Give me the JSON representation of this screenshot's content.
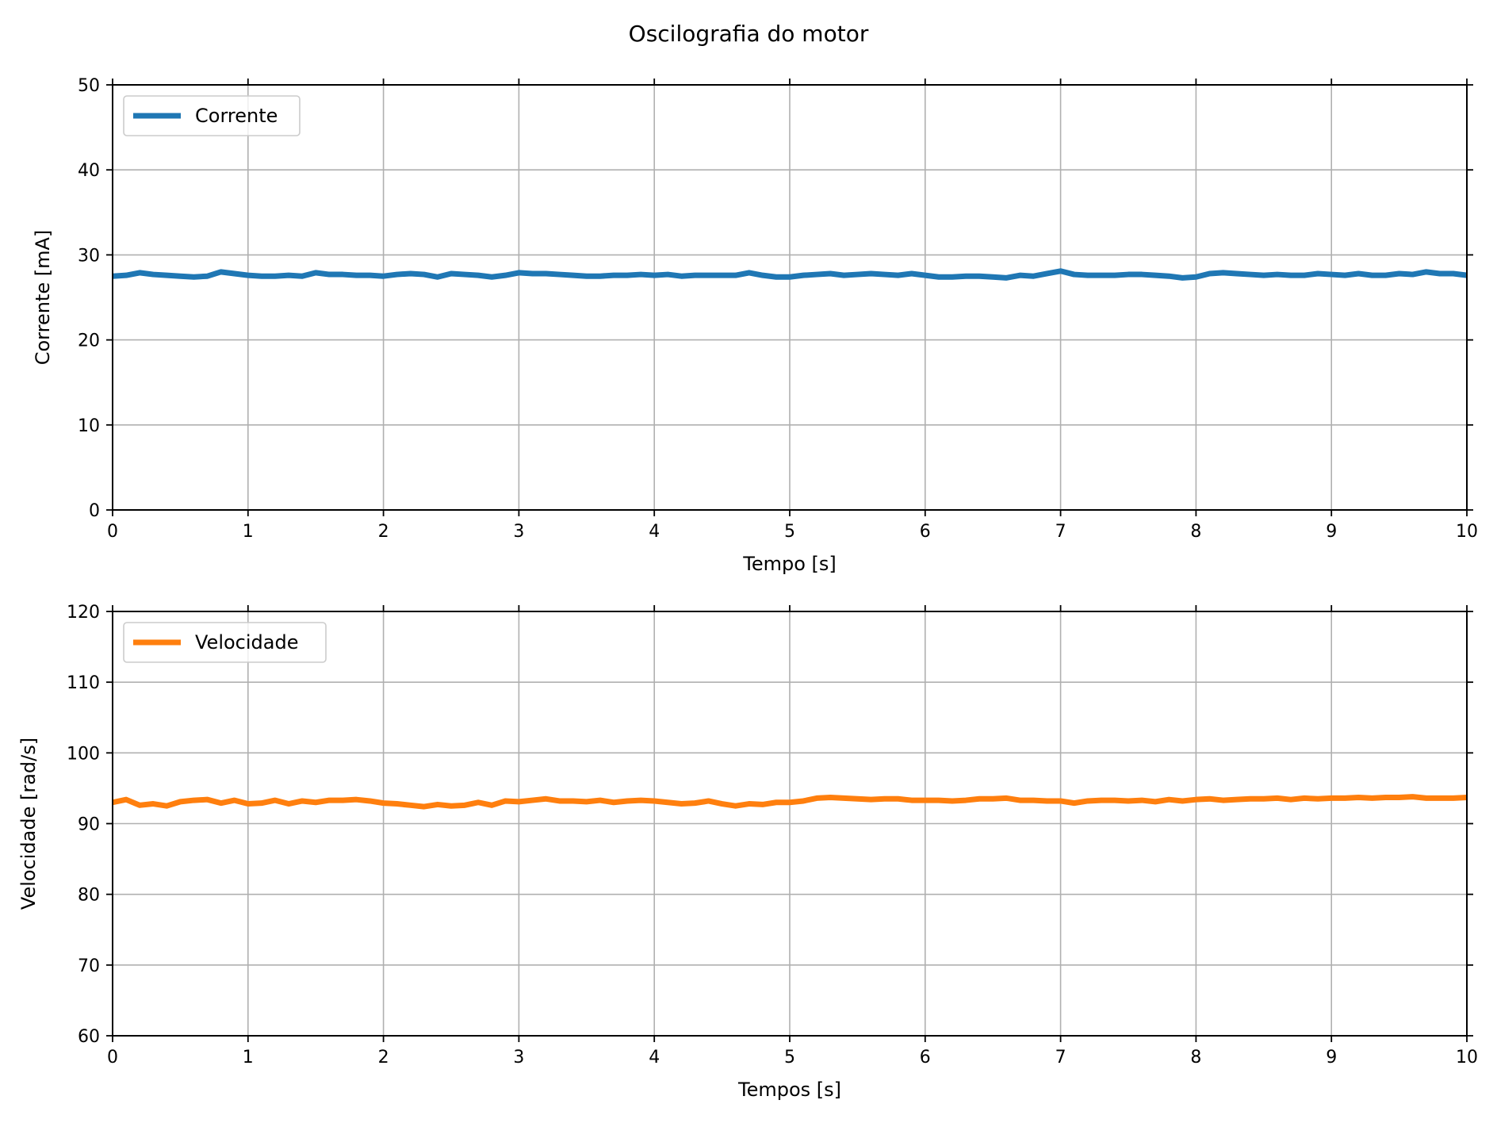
{
  "figure": {
    "title": "Oscilografia do motor"
  },
  "chart_data": [
    {
      "type": "line",
      "xlabel": "Tempo [s]",
      "ylabel": "Corrente [mA]",
      "xlim": [
        0,
        10
      ],
      "ylim": [
        0,
        50
      ],
      "xticks": [
        0,
        1,
        2,
        3,
        4,
        5,
        6,
        7,
        8,
        9,
        10
      ],
      "yticks": [
        0,
        10,
        20,
        30,
        40,
        50
      ],
      "grid": true,
      "legend_position": "top-left",
      "series": [
        {
          "name": "Corrente",
          "color": "#1f77b4",
          "x": [
            0,
            0.1,
            0.2,
            0.3,
            0.4,
            0.5,
            0.6,
            0.7,
            0.8,
            0.9,
            1.0,
            1.1,
            1.2,
            1.3,
            1.4,
            1.5,
            1.6,
            1.7,
            1.8,
            1.9,
            2.0,
            2.1,
            2.2,
            2.3,
            2.4,
            2.5,
            2.6,
            2.7,
            2.8,
            2.9,
            3.0,
            3.1,
            3.2,
            3.3,
            3.4,
            3.5,
            3.6,
            3.7,
            3.8,
            3.9,
            4.0,
            4.1,
            4.2,
            4.3,
            4.4,
            4.5,
            4.6,
            4.7,
            4.8,
            4.9,
            5.0,
            5.1,
            5.2,
            5.3,
            5.4,
            5.5,
            5.6,
            5.7,
            5.8,
            5.9,
            6.0,
            6.1,
            6.2,
            6.3,
            6.4,
            6.5,
            6.6,
            6.7,
            6.8,
            6.9,
            7.0,
            7.1,
            7.2,
            7.3,
            7.4,
            7.5,
            7.6,
            7.7,
            7.8,
            7.9,
            8.0,
            8.1,
            8.2,
            8.3,
            8.4,
            8.5,
            8.6,
            8.7,
            8.8,
            8.9,
            9.0,
            9.1,
            9.2,
            9.3,
            9.4,
            9.5,
            9.6,
            9.7,
            9.8,
            9.9,
            10.0
          ],
          "y": [
            27.5,
            27.6,
            27.9,
            27.7,
            27.6,
            27.5,
            27.4,
            27.5,
            28.0,
            27.8,
            27.6,
            27.5,
            27.5,
            27.6,
            27.5,
            27.9,
            27.7,
            27.7,
            27.6,
            27.6,
            27.5,
            27.7,
            27.8,
            27.7,
            27.4,
            27.8,
            27.7,
            27.6,
            27.4,
            27.6,
            27.9,
            27.8,
            27.8,
            27.7,
            27.6,
            27.5,
            27.5,
            27.6,
            27.6,
            27.7,
            27.6,
            27.7,
            27.5,
            27.6,
            27.6,
            27.6,
            27.6,
            27.9,
            27.6,
            27.4,
            27.4,
            27.6,
            27.7,
            27.8,
            27.6,
            27.7,
            27.8,
            27.7,
            27.6,
            27.8,
            27.6,
            27.4,
            27.4,
            27.5,
            27.5,
            27.4,
            27.3,
            27.6,
            27.5,
            27.8,
            28.1,
            27.7,
            27.6,
            27.6,
            27.6,
            27.7,
            27.7,
            27.6,
            27.5,
            27.3,
            27.4,
            27.8,
            27.9,
            27.8,
            27.7,
            27.6,
            27.7,
            27.6,
            27.6,
            27.8,
            27.7,
            27.6,
            27.8,
            27.6,
            27.6,
            27.8,
            27.7,
            28.0,
            27.8,
            27.8,
            27.6
          ]
        }
      ]
    },
    {
      "type": "line",
      "xlabel": "Tempos [s]",
      "ylabel": "Velocidade [rad/s]",
      "xlim": [
        0,
        10
      ],
      "ylim": [
        60,
        120
      ],
      "xticks": [
        0,
        1,
        2,
        3,
        4,
        5,
        6,
        7,
        8,
        9,
        10
      ],
      "yticks": [
        60,
        70,
        80,
        90,
        100,
        110,
        120
      ],
      "grid": true,
      "legend_position": "top-left",
      "series": [
        {
          "name": "Velocidade",
          "color": "#ff7f0e",
          "x": [
            0,
            0.1,
            0.2,
            0.3,
            0.4,
            0.5,
            0.6,
            0.7,
            0.8,
            0.9,
            1.0,
            1.1,
            1.2,
            1.3,
            1.4,
            1.5,
            1.6,
            1.7,
            1.8,
            1.9,
            2.0,
            2.1,
            2.2,
            2.3,
            2.4,
            2.5,
            2.6,
            2.7,
            2.8,
            2.9,
            3.0,
            3.1,
            3.2,
            3.3,
            3.4,
            3.5,
            3.6,
            3.7,
            3.8,
            3.9,
            4.0,
            4.1,
            4.2,
            4.3,
            4.4,
            4.5,
            4.6,
            4.7,
            4.8,
            4.9,
            5.0,
            5.1,
            5.2,
            5.3,
            5.4,
            5.5,
            5.6,
            5.7,
            5.8,
            5.9,
            6.0,
            6.1,
            6.2,
            6.3,
            6.4,
            6.5,
            6.6,
            6.7,
            6.8,
            6.9,
            7.0,
            7.1,
            7.2,
            7.3,
            7.4,
            7.5,
            7.6,
            7.7,
            7.8,
            7.9,
            8.0,
            8.1,
            8.2,
            8.3,
            8.4,
            8.5,
            8.6,
            8.7,
            8.8,
            8.9,
            9.0,
            9.1,
            9.2,
            9.3,
            9.4,
            9.5,
            9.6,
            9.7,
            9.8,
            9.9,
            10.0
          ],
          "y": [
            93.0,
            93.4,
            92.6,
            92.8,
            92.5,
            93.1,
            93.3,
            93.4,
            92.9,
            93.3,
            92.8,
            92.9,
            93.3,
            92.8,
            93.2,
            93.0,
            93.3,
            93.3,
            93.4,
            93.2,
            92.9,
            92.8,
            92.6,
            92.4,
            92.7,
            92.5,
            92.6,
            93.0,
            92.6,
            93.2,
            93.1,
            93.3,
            93.5,
            93.2,
            93.2,
            93.1,
            93.3,
            93.0,
            93.2,
            93.3,
            93.2,
            93.0,
            92.8,
            92.9,
            93.2,
            92.8,
            92.5,
            92.8,
            92.7,
            93.0,
            93.0,
            93.2,
            93.6,
            93.7,
            93.6,
            93.5,
            93.4,
            93.5,
            93.5,
            93.3,
            93.3,
            93.3,
            93.2,
            93.3,
            93.5,
            93.5,
            93.6,
            93.3,
            93.3,
            93.2,
            93.2,
            92.9,
            93.2,
            93.3,
            93.3,
            93.2,
            93.3,
            93.1,
            93.4,
            93.2,
            93.4,
            93.5,
            93.3,
            93.4,
            93.5,
            93.5,
            93.6,
            93.4,
            93.6,
            93.5,
            93.6,
            93.6,
            93.7,
            93.6,
            93.7,
            93.7,
            93.8,
            93.6,
            93.6,
            93.6,
            93.7
          ]
        }
      ]
    }
  ]
}
